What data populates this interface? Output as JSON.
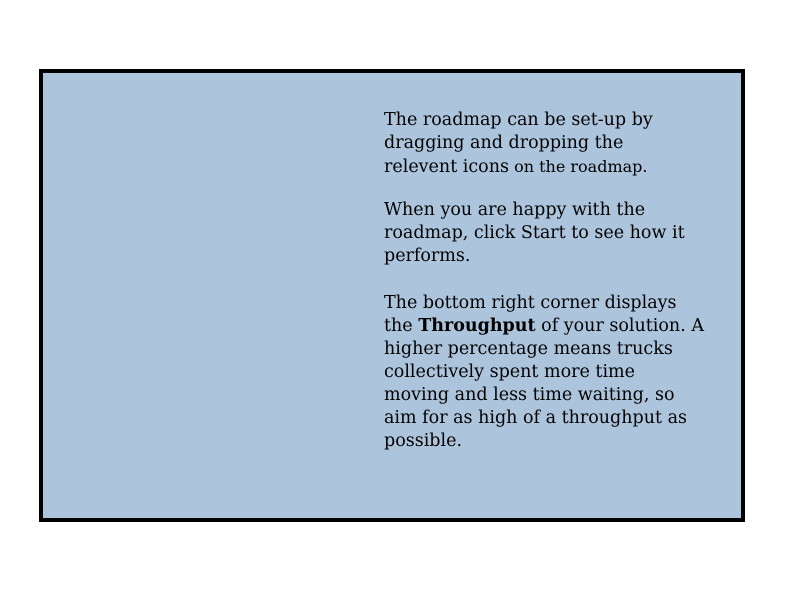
{
  "instructions": {
    "p1": {
      "line1": "The roadmap can be set-up by",
      "line2": "dragging and dropping the",
      "line3a": "relevent icons",
      "line3b": " on the roadmap."
    },
    "p2": {
      "line1": "When you are happy with the",
      "line2": "roadmap, click Start to see how it",
      "line3": "performs."
    },
    "p3": {
      "line1": "The bottom right corner displays",
      "line2a": "the ",
      "line2b": "Throughput",
      "line2c": " of your solution. A",
      "line3": "higher percentage means trucks",
      "line4": "collectively spent more time",
      "line5": "moving and less time waiting, so",
      "line6": "aim for as high of a throughput as",
      "line7": "possible."
    }
  },
  "colors": {
    "panel_background": "#adc5dc",
    "panel_border": "#000000",
    "page_background": "#ffffff",
    "text": "#000000"
  }
}
